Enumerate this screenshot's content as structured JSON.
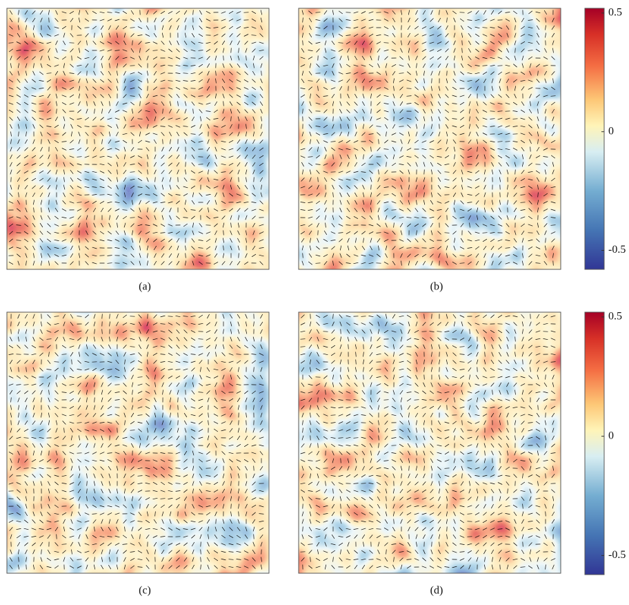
{
  "panels": [
    {
      "label": "(a)"
    },
    {
      "label": "(b)"
    },
    {
      "label": "(c)"
    },
    {
      "label": "(d)"
    }
  ],
  "colorbars": [
    {
      "ylim": [
        -0.58,
        0.52
      ],
      "yticks": [
        0.5,
        0,
        -0.5
      ]
    },
    {
      "ylim": [
        -0.58,
        0.52
      ],
      "yticks": [
        0.5,
        0,
        -0.5
      ]
    }
  ]
}
